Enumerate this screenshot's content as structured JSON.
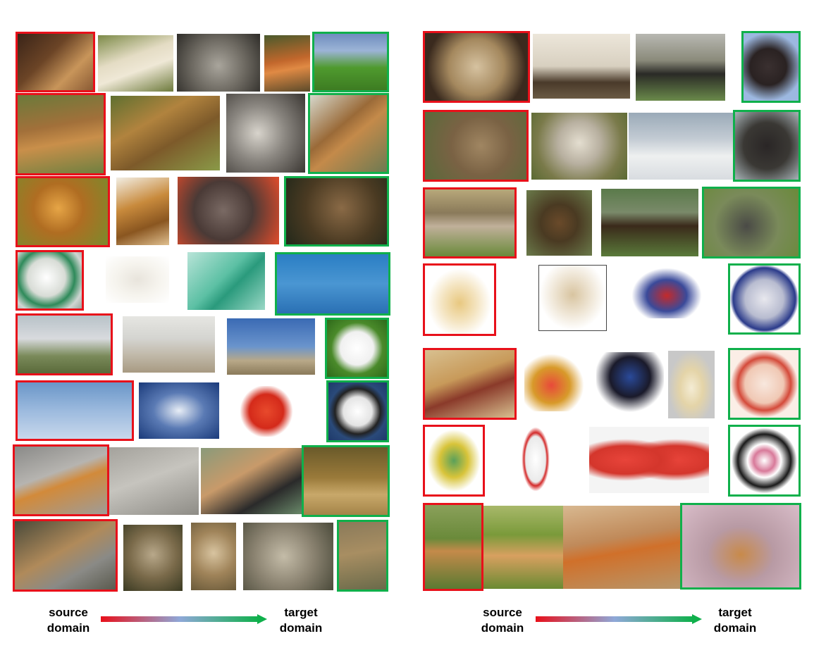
{
  "colors": {
    "source": "#e8101a",
    "target": "#0fb04b",
    "gradient_mid": "#8fa8d8"
  },
  "legend": {
    "source_line1": "source",
    "source_line2": "domain",
    "target_line1": "target",
    "target_line2": "domain"
  },
  "left_grid": [
    [
      "lioness-lying",
      "white-lioness",
      "persian-cat",
      "red-fox",
      "german-shepherd"
    ],
    [
      "lion-lying",
      "lions-pair",
      "wolves-pair",
      "malinois-dog"
    ],
    [
      "lion-portrait",
      "lion-profile",
      "grey-cat",
      "wolf-portrait"
    ],
    [
      "soccer-ball-green",
      "megaphone",
      "syringe",
      "airliner-sky"
    ],
    [
      "jet-runway",
      "jet-taxiing",
      "goodyear-blimp",
      "soccer-ball-white"
    ],
    [
      "airliner-virgin",
      "blimp-white",
      "boxing-glove",
      "soccer-ball-black"
    ],
    [
      "chihuahua-scarf",
      "chihuahua-walking",
      "dogs-sleeping",
      "deer-pair"
    ],
    [
      "lion-resting",
      "lynx-1",
      "lynx-2",
      "lynx-3",
      "hare"
    ]
  ],
  "right_grid": [
    [
      "sheep-pair",
      "yak",
      "puppy",
      "chimpanzee-1"
    ],
    [
      "sheep-brown",
      "sheep-white",
      "polar-bears",
      "chimpanzee-2"
    ],
    [
      "sheep-field",
      "bear-brown",
      "bears-pair",
      "chimpanzee-3"
    ],
    [
      "sled-toy",
      "megaphone",
      "game-controller",
      "soccer-ball-mitre"
    ],
    [
      "skateboard",
      "toy-mouse",
      "steering-wheel",
      "vase",
      "soccer-ball-pink"
    ],
    [
      "skateboard-small",
      "bowling-pin",
      "guitar-picks",
      "soccer-ball-framed"
    ],
    [
      "impala",
      "deer",
      "fox",
      "dog-lying"
    ]
  ]
}
